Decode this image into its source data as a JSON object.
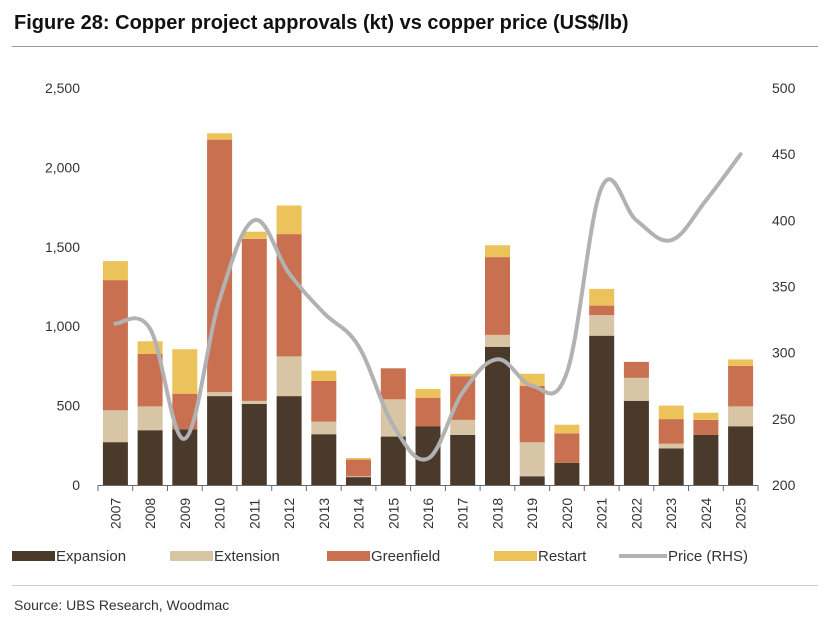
{
  "title": "Figure 28: Copper project approvals (kt) vs copper price (US$/lb)",
  "source": "Source: UBS Research, Woodmac",
  "colors": {
    "expansion": "#4a3a2c",
    "extension": "#d7c5a6",
    "greenfield": "#c8704f",
    "restart": "#ecc35b",
    "price": "#b2b2b2",
    "axis": "#6a6a6a"
  },
  "chart_data": {
    "type": "bar",
    "stacked": true,
    "categories": [
      "2007",
      "2008",
      "2009",
      "2010",
      "2011",
      "2012",
      "2013",
      "2014",
      "2015",
      "2016",
      "2017",
      "2018",
      "2019",
      "2020",
      "2021",
      "2022",
      "2023",
      "2024",
      "2025"
    ],
    "series": [
      {
        "name": "Expansion",
        "values": [
          270,
          345,
          350,
          560,
          510,
          560,
          320,
          50,
          305,
          370,
          315,
          870,
          55,
          140,
          940,
          530,
          230,
          315,
          370
        ]
      },
      {
        "name": "Extension",
        "values": [
          200,
          150,
          0,
          25,
          20,
          250,
          80,
          5,
          235,
          0,
          95,
          75,
          215,
          0,
          130,
          145,
          30,
          0,
          125
        ]
      },
      {
        "name": "Greenfield",
        "values": [
          820,
          330,
          225,
          1590,
          1020,
          770,
          255,
          105,
          195,
          180,
          275,
          490,
          355,
          185,
          60,
          100,
          155,
          95,
          255
        ]
      },
      {
        "name": "Restart",
        "values": [
          120,
          80,
          280,
          40,
          45,
          180,
          65,
          10,
          0,
          55,
          15,
          75,
          75,
          55,
          105,
          0,
          85,
          45,
          40
        ]
      },
      {
        "name": "Price (RHS)",
        "axis": "right",
        "type": "line",
        "values": [
          322,
          318,
          235,
          340,
          400,
          360,
          330,
          305,
          245,
          220,
          270,
          295,
          275,
          285,
          425,
          400,
          385,
          415,
          450
        ]
      }
    ],
    "y_left": {
      "ylim": [
        0,
        2500
      ],
      "ticks": [
        "0",
        "500",
        "1,000",
        "1,500",
        "2,000",
        "2,500"
      ],
      "tick_values": [
        0,
        500,
        1000,
        1500,
        2000,
        2500
      ]
    },
    "y_right": {
      "ylim": [
        200,
        500
      ],
      "ticks": [
        "200",
        "250",
        "300",
        "350",
        "400",
        "450",
        "500"
      ],
      "tick_values": [
        200,
        250,
        300,
        350,
        400,
        450,
        500
      ]
    },
    "legend": {
      "position": "bottom",
      "entries": [
        "Expansion",
        "Extension",
        "Greenfield",
        "Restart",
        "Price (RHS)"
      ]
    },
    "grid": false
  }
}
